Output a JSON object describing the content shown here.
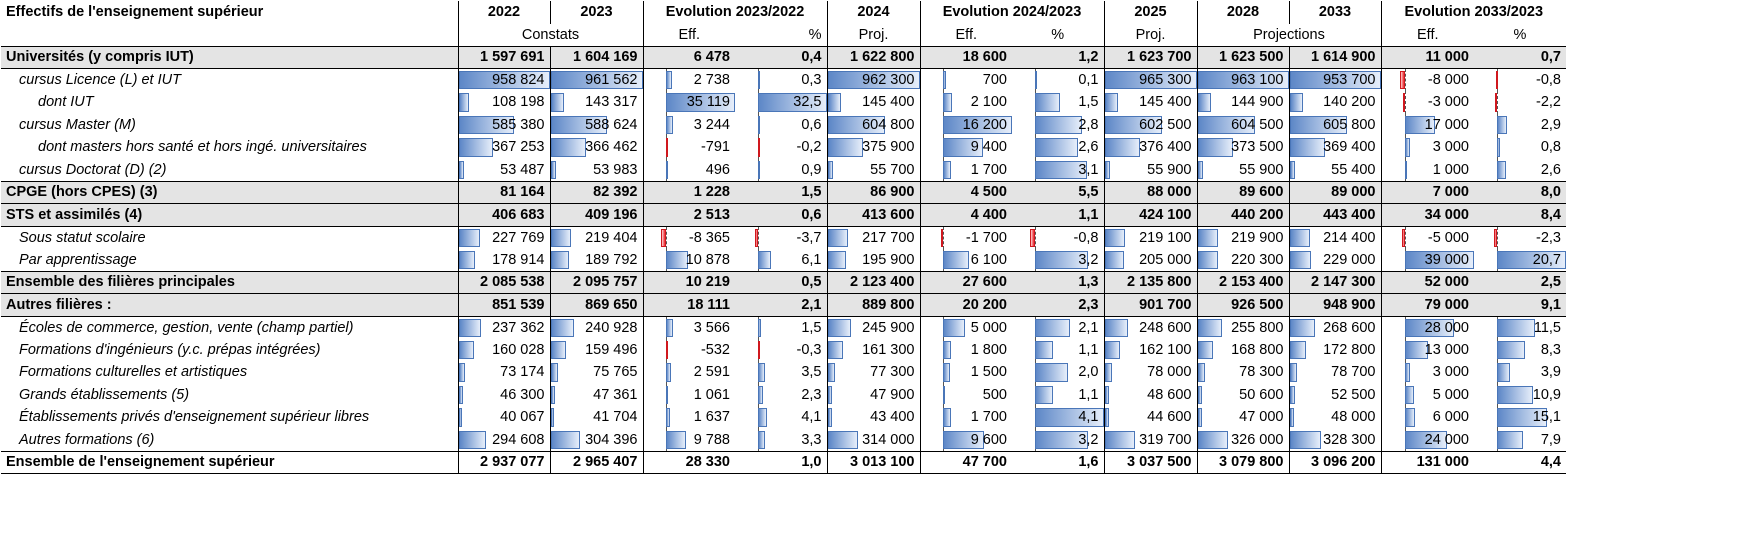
{
  "table": {
    "title": "Effectifs de l'enseignement supérieur",
    "headers": [
      "2022",
      "2023",
      "Evolution 2023/2022",
      "2024",
      "Evolution 2024/2023",
      "2025",
      "2028",
      "2033",
      "Evolution 2033/2023"
    ],
    "subheaders": [
      "Constats",
      "Eff.",
      "%",
      "Proj.",
      "Eff.",
      "%",
      "Proj.",
      "Projections",
      "Eff.",
      "%"
    ],
    "rows": [
      {
        "label": "Universités (y compris IUT)",
        "style": "bold-shaded",
        "values": [
          "1 597 691",
          "1 604 169",
          "6 478",
          "0,4",
          "1 622 800",
          "18 600",
          "1,2",
          "1 623 700",
          "1 623 500",
          "1 614 900",
          "11 000",
          "0,7"
        ]
      },
      {
        "label": "cursus Licence (L) et IUT",
        "indent": 1,
        "style": "italic",
        "values": [
          "958 824",
          "961 562",
          "2 738",
          "0,3",
          "962 300",
          "700",
          "0,1",
          "965 300",
          "963 100",
          "953 700",
          "-8 000",
          "-0,8"
        ]
      },
      {
        "label": "dont IUT",
        "indent": 2,
        "style": "italic",
        "values": [
          "108 198",
          "143 317",
          "35 119",
          "32,5",
          "145 400",
          "2 100",
          "1,5",
          "145 400",
          "144 900",
          "140 200",
          "-3 000",
          "-2,2"
        ]
      },
      {
        "label": "cursus Master (M)",
        "indent": 1,
        "style": "italic",
        "values": [
          "585 380",
          "588 624",
          "3 244",
          "0,6",
          "604 800",
          "16 200",
          "2,8",
          "602 500",
          "604 500",
          "605 800",
          "17 000",
          "2,9"
        ]
      },
      {
        "label": "dont masters hors santé et hors ingé. universitaires",
        "indent": 2,
        "style": "italic",
        "values": [
          "367 253",
          "366 462",
          "-791",
          "-0,2",
          "375 900",
          "9 400",
          "2,6",
          "376 400",
          "373 500",
          "369 400",
          "3 000",
          "0,8"
        ]
      },
      {
        "label": "cursus Doctorat (D) (2)",
        "indent": 1,
        "style": "italic",
        "values": [
          "53 487",
          "53 983",
          "496",
          "0,9",
          "55 700",
          "1 700",
          "3,1",
          "55 900",
          "55 900",
          "55 400",
          "1 000",
          "2,6"
        ]
      },
      {
        "label": "CPGE (hors CPES) (3)",
        "style": "bold-shaded",
        "values": [
          "81 164",
          "82 392",
          "1 228",
          "1,5",
          "86 900",
          "4 500",
          "5,5",
          "88 000",
          "89 600",
          "89 000",
          "7 000",
          "8,0"
        ]
      },
      {
        "label": "STS et assimilés (4)",
        "style": "bold-shaded",
        "values": [
          "406 683",
          "409 196",
          "2 513",
          "0,6",
          "413 600",
          "4 400",
          "1,1",
          "424 100",
          "440 200",
          "443 400",
          "34 000",
          "8,4"
        ]
      },
      {
        "label": "Sous statut scolaire",
        "indent": 1,
        "style": "italic",
        "values": [
          "227 769",
          "219 404",
          "-8 365",
          "-3,7",
          "217 700",
          "-1 700",
          "-0,8",
          "219 100",
          "219 900",
          "214 400",
          "-5 000",
          "-2,3"
        ]
      },
      {
        "label": "Par apprentissage",
        "indent": 1,
        "style": "italic",
        "values": [
          "178 914",
          "189 792",
          "10 878",
          "6,1",
          "195 900",
          "6 100",
          "3,2",
          "205 000",
          "220 300",
          "229 000",
          "39 000",
          "20,7"
        ]
      },
      {
        "label": "Ensemble des filières principales",
        "style": "bold-shaded",
        "values": [
          "2 085 538",
          "2 095 757",
          "10 219",
          "0,5",
          "2 123 400",
          "27 600",
          "1,3",
          "2 135 800",
          "2 153 400",
          "2 147 300",
          "52 000",
          "2,5"
        ]
      },
      {
        "label": "Autres filières :",
        "style": "bold-shaded",
        "values": [
          "851 539",
          "869 650",
          "18 111",
          "2,1",
          "889 800",
          "20 200",
          "2,3",
          "901 700",
          "926 500",
          "948 900",
          "79 000",
          "9,1"
        ]
      },
      {
        "label": "Écoles de commerce, gestion, vente (champ partiel)",
        "indent": 1,
        "style": "italic",
        "values": [
          "237 362",
          "240 928",
          "3 566",
          "1,5",
          "245 900",
          "5 000",
          "2,1",
          "248 600",
          "255 800",
          "268 600",
          "28 000",
          "11,5"
        ]
      },
      {
        "label": "Formations d'ingénieurs (y.c. prépas intégrées)",
        "indent": 1,
        "style": "italic",
        "values": [
          "160 028",
          "159 496",
          "-532",
          "-0,3",
          "161 300",
          "1 800",
          "1,1",
          "162 100",
          "168 800",
          "172 800",
          "13 000",
          "8,3"
        ]
      },
      {
        "label": "Formations culturelles et artistiques",
        "indent": 1,
        "style": "italic",
        "values": [
          "73 174",
          "75 765",
          "2 591",
          "3,5",
          "77 300",
          "1 500",
          "2,0",
          "78 000",
          "78 300",
          "78 700",
          "3 000",
          "3,9"
        ]
      },
      {
        "label": "Grands établissements (5)",
        "indent": 1,
        "style": "italic",
        "values": [
          "46 300",
          "47 361",
          "1 061",
          "2,3",
          "47 900",
          "500",
          "1,1",
          "48 600",
          "50 600",
          "52 500",
          "5 000",
          "10,9"
        ]
      },
      {
        "label": "Établissements privés d'enseignement supérieur libres",
        "indent": 1,
        "style": "italic",
        "values": [
          "40 067",
          "41 704",
          "1 637",
          "4,1",
          "43 400",
          "1 700",
          "4,1",
          "44 600",
          "47 000",
          "48 000",
          "6 000",
          "15,1"
        ]
      },
      {
        "label": "Autres formations (6)",
        "indent": 1,
        "style": "italic",
        "values": [
          "294 608",
          "304 396",
          "9 788",
          "3,3",
          "314 000",
          "9 600",
          "3,2",
          "319 700",
          "326 000",
          "328 300",
          "24 000",
          "7,9"
        ]
      },
      {
        "label": "Ensemble de l'enseignement supérieur",
        "style": "bold",
        "values": [
          "2 937 077",
          "2 965 407",
          "28 330",
          "1,0",
          "3 013 100",
          "47 700",
          "1,6",
          "3 037 500",
          "3 079 800",
          "3 096 200",
          "131 000",
          "4,4"
        ]
      }
    ]
  }
}
